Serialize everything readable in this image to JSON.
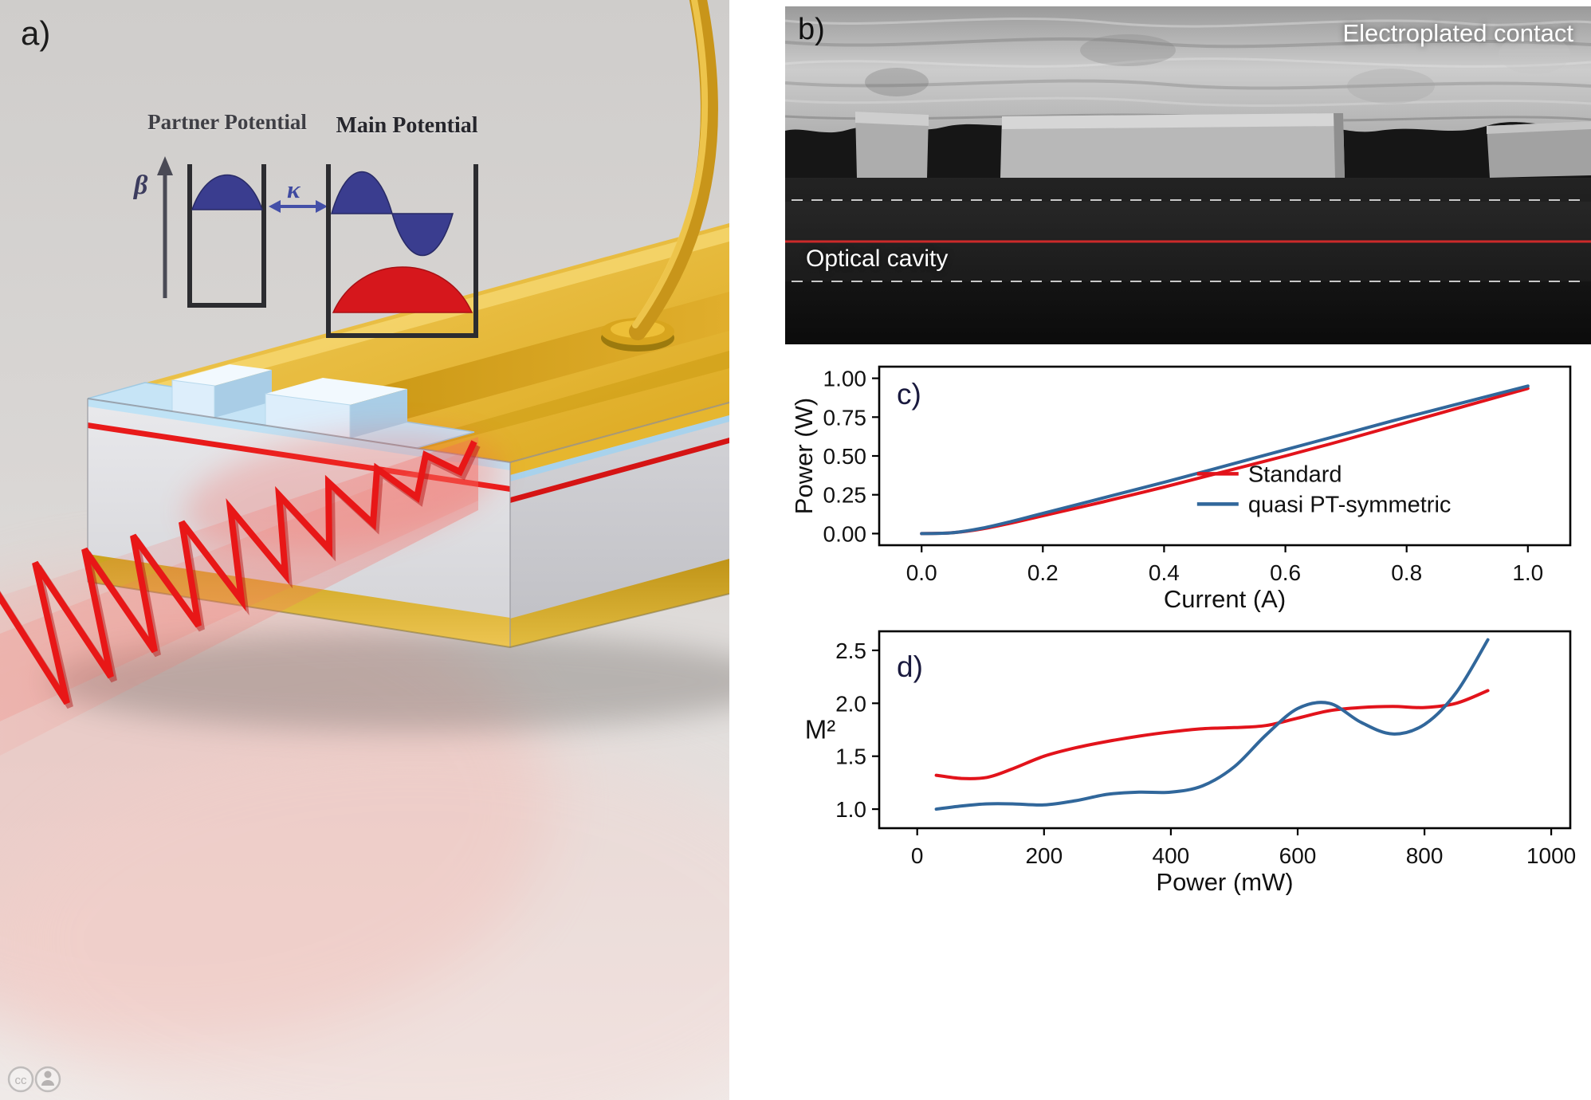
{
  "panel_a": {
    "label": "a)",
    "partner_potential_label": "Partner Potential",
    "main_potential_label": "Main Potential",
    "beta_symbol": "β",
    "kappa_symbol": "κ"
  },
  "panel_b": {
    "label": "b)",
    "electroplated_contact_label": "Electroplated contact",
    "optical_cavity_label": "Optical cavity"
  },
  "panel_c": {
    "label": "c)"
  },
  "panel_d": {
    "label": "d)"
  },
  "colors": {
    "standard_red": "#e2131b",
    "pt_blue": "#31679b",
    "active_region_red": "#e21717",
    "gold_contact": "#d9a81f",
    "insulator_blue": "#bfe4f7"
  },
  "chart_data": [
    {
      "type": "line",
      "title": "",
      "xlabel": "Current (A)",
      "ylabel": "Power (W)",
      "xlim": [
        -0.07,
        1.07
      ],
      "ylim": [
        -0.075,
        1.075
      ],
      "xticks": [
        0,
        0.2,
        0.4,
        0.6,
        0.8,
        1.0
      ],
      "xtick_labels": [
        "0.0",
        "0.2",
        "0.4",
        "0.6",
        "0.8",
        "1.0"
      ],
      "yticks": [
        0,
        0.25,
        0.5,
        0.75,
        1.0
      ],
      "ytick_labels": [
        "0.00",
        "0.25",
        "0.50",
        "0.75",
        "1.00"
      ],
      "grid": false,
      "legend_position": "center-right",
      "series": [
        {
          "name": "Standard",
          "color": "#e2131b",
          "x": [
            0,
            0.05,
            0.1,
            0.15,
            0.2,
            0.3,
            0.4,
            0.5,
            0.6,
            0.7,
            0.8,
            0.9,
            1.0
          ],
          "y": [
            0,
            0.005,
            0.03,
            0.07,
            0.115,
            0.205,
            0.3,
            0.4,
            0.5,
            0.605,
            0.715,
            0.825,
            0.935
          ]
        },
        {
          "name": "quasi PT-symmetric",
          "color": "#31679b",
          "x": [
            0,
            0.05,
            0.1,
            0.15,
            0.2,
            0.3,
            0.4,
            0.5,
            0.6,
            0.7,
            0.8,
            0.9,
            1.0
          ],
          "y": [
            0,
            0.005,
            0.035,
            0.08,
            0.13,
            0.23,
            0.33,
            0.435,
            0.54,
            0.645,
            0.75,
            0.85,
            0.95
          ]
        }
      ]
    },
    {
      "type": "line",
      "title": "",
      "xlabel": "Power (mW)",
      "ylabel": "M²",
      "xlim": [
        -60,
        1030
      ],
      "ylim": [
        0.82,
        2.68
      ],
      "xticks": [
        0,
        200,
        400,
        600,
        800,
        1000
      ],
      "xtick_labels": [
        "0",
        "200",
        "400",
        "600",
        "800",
        "1000"
      ],
      "yticks": [
        1.0,
        1.5,
        2.0,
        2.5
      ],
      "ytick_labels": [
        "1.0",
        "1.5",
        "2.0",
        "2.5"
      ],
      "grid": false,
      "legend_position": "none",
      "series": [
        {
          "name": "Standard",
          "color": "#e2131b",
          "x": [
            30,
            70,
            110,
            150,
            200,
            250,
            300,
            350,
            400,
            450,
            500,
            550,
            600,
            650,
            700,
            750,
            800,
            850,
            900
          ],
          "y": [
            1.32,
            1.29,
            1.3,
            1.38,
            1.5,
            1.58,
            1.64,
            1.69,
            1.73,
            1.76,
            1.77,
            1.79,
            1.86,
            1.93,
            1.96,
            1.97,
            1.96,
            2.0,
            2.12
          ]
        },
        {
          "name": "quasi PT-symmetric",
          "color": "#31679b",
          "x": [
            30,
            70,
            110,
            150,
            200,
            250,
            300,
            350,
            400,
            450,
            500,
            550,
            600,
            650,
            700,
            750,
            800,
            850,
            900
          ],
          "y": [
            1.0,
            1.03,
            1.05,
            1.05,
            1.04,
            1.08,
            1.14,
            1.16,
            1.16,
            1.22,
            1.4,
            1.7,
            1.95,
            2.0,
            1.82,
            1.71,
            1.8,
            2.1,
            2.6
          ]
        }
      ]
    }
  ]
}
